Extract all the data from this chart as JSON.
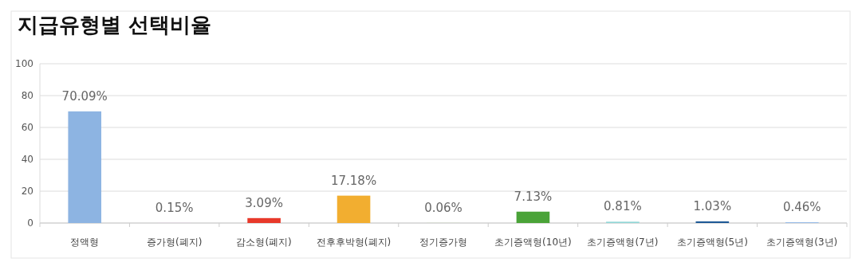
{
  "chart_data": {
    "type": "bar",
    "title": "지급유형별 선택비율",
    "categories": [
      "정액형",
      "증가형(폐지)",
      "감소형(폐지)",
      "전후후박형(폐지)",
      "정기증가형",
      "초기증액형(10년)",
      "초기증액형(7년)",
      "초기증액형(5년)",
      "초기증액형(3년)"
    ],
    "values": [
      70.09,
      0.15,
      3.09,
      17.18,
      0.06,
      7.13,
      0.81,
      1.03,
      0.46
    ],
    "value_labels": [
      "70.09%",
      "0.15%",
      "3.09%",
      "17.18%",
      "0.06%",
      "7.13%",
      "0.81%",
      "1.03%",
      "0.46%"
    ],
    "colors": [
      "#8db4e2",
      "#e6cfe6",
      "#e8392a",
      "#f2ae30",
      "#c6d9a0",
      "#4aa338",
      "#8fd6d6",
      "#1f5a96",
      "#8fb8e8"
    ],
    "ylim": [
      0,
      100
    ],
    "yticks": [
      0,
      20,
      40,
      60,
      80,
      100
    ],
    "grid": "y"
  }
}
